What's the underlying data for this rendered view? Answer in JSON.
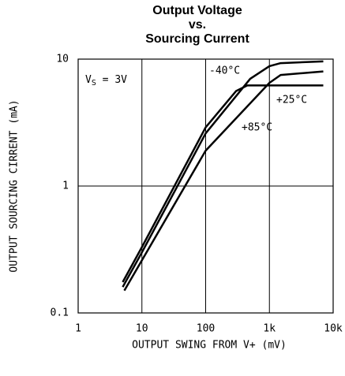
{
  "chart_data": {
    "type": "line",
    "title": [
      "Output Voltage",
      "vs.",
      "Sourcing Current"
    ],
    "xlabel": "OUTPUT SWING FROM V+ (mV)",
    "ylabel": "OUTPUT SOURCING CIRRENT (mA)",
    "xscale": "log",
    "yscale": "log",
    "grid": true,
    "xlim": [
      1,
      10000
    ],
    "ylim": [
      0.1,
      10
    ],
    "xticks": [
      1,
      10,
      100,
      {
        "value": 1000,
        "label": "1k"
      },
      {
        "value": 10000,
        "label": "10k"
      }
    ],
    "yticks": [
      0.1,
      1,
      10
    ],
    "annotations": [
      {
        "parts": [
          "V",
          "S",
          " = 3V"
        ]
      },
      {
        "text": "-40°C"
      },
      {
        "text": "+25°C"
      },
      {
        "text": "+85°C"
      }
    ],
    "series": [
      {
        "name": "-40°C",
        "color": "#000000",
        "x": [
          5,
          10,
          100,
          500,
          1000,
          1500,
          7000
        ],
        "values": [
          0.16,
          0.3,
          2.6,
          7,
          8.8,
          9.3,
          9.6
        ]
      },
      {
        "name": "+25°C",
        "color": "#000000",
        "x": [
          5,
          10,
          100,
          300,
          450,
          7000
        ],
        "values": [
          0.175,
          0.33,
          2.9,
          5.6,
          6.2,
          6.2
        ]
      },
      {
        "name": "+85°C",
        "color": "#000000",
        "x": [
          5.3,
          10,
          100,
          1000,
          1500,
          7000
        ],
        "values": [
          0.15,
          0.26,
          1.9,
          6.5,
          7.5,
          8.0
        ]
      }
    ]
  }
}
